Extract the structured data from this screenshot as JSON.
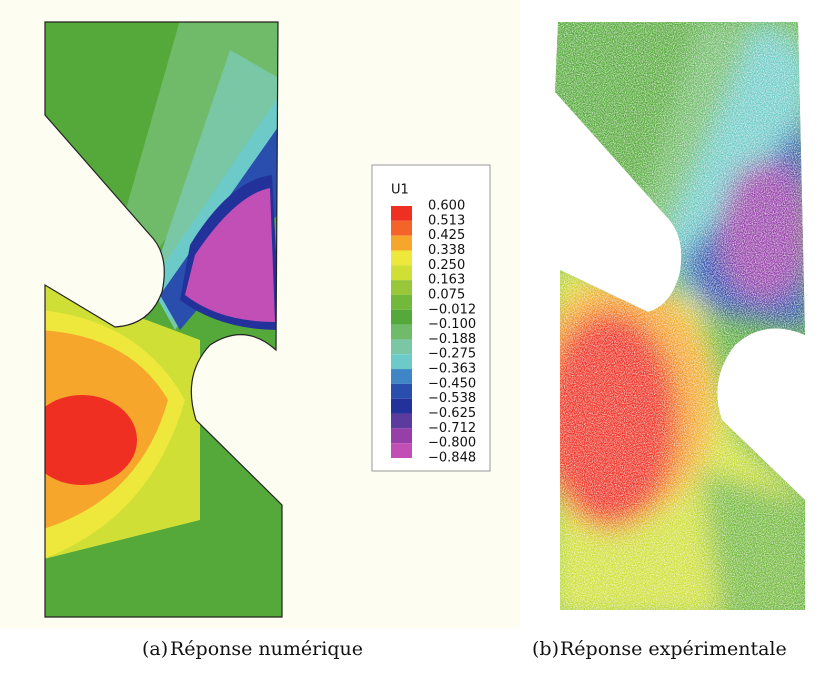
{
  "legend": {
    "title": "U1",
    "labels": [
      "0.600",
      "0.513",
      "0.425",
      "0.338",
      "0.250",
      "0.163",
      "0.075",
      "−0.012",
      "−0.100",
      "−0.188",
      "−0.275",
      "−0.363",
      "−0.450",
      "−0.538",
      "−0.625",
      "−0.712",
      "−0.800",
      "−0.848"
    ],
    "colors": [
      "#ef2f22",
      "#f4642a",
      "#f5a62b",
      "#eee83c",
      "#cfdf36",
      "#98c83a",
      "#72b83a",
      "#55a93a",
      "#70bb6a",
      "#79c7a4",
      "#6ccbc8",
      "#3f86c6",
      "#2a4eae",
      "#23329a",
      "#5b3c9e",
      "#963fa9",
      "#c14fb6"
    ]
  },
  "captions": [
    {
      "tag": "(a)",
      "text": "Réponse numérique"
    },
    {
      "tag": "(b)",
      "text": "Réponse expérimentale"
    }
  ]
}
